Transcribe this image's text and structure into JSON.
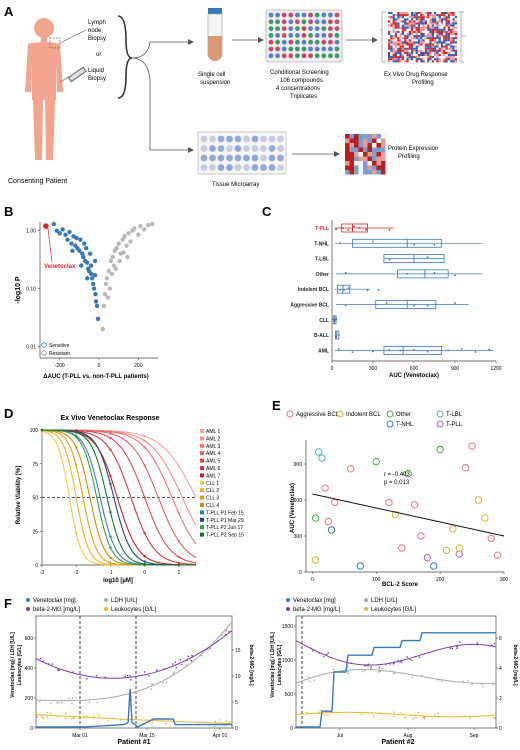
{
  "panels": {
    "a": "A",
    "b": "B",
    "c": "C",
    "d": "D",
    "e": "E",
    "f": "F"
  },
  "panelA": {
    "lymph": [
      "Lymph",
      "node",
      "Biopsy"
    ],
    "or": "or",
    "liquid": [
      "Liquid",
      "Biopsy"
    ],
    "patient": "Consenting Patient",
    "single": [
      "Single cell",
      "suspension"
    ],
    "screen": [
      "Conditional Screening",
      "106 compounds",
      "4 concentrations",
      "Triplicates"
    ],
    "exvivo": [
      "Ex Vivo Drug Response",
      "Profiling"
    ],
    "tma": "Tissue Microarray",
    "protein": [
      "Protein Expression",
      "Profiling"
    ]
  },
  "panelB": {
    "ylabel": "-log10 P",
    "xlabel": "ΔAUC (T-PLL vs. non-T-PLL patients)",
    "venetoclax": "Venetoclax",
    "legend": [
      "Sensitive",
      "Resistant"
    ],
    "yticks": [
      "1.00",
      "0.10",
      "0.01"
    ],
    "xticks": [
      "-200",
      "0",
      "200"
    ],
    "colors": {
      "sensitive": "#3a78b5",
      "resistant": "#b8b8b8",
      "venetoclax": "#d42828"
    },
    "chart_data": {
      "type": "scatter",
      "venetoclax": {
        "x": -270,
        "y": 1.2
      },
      "sensitive": [
        [
          -230,
          1.3
        ],
        [
          -215,
          1.0
        ],
        [
          -200,
          0.9
        ],
        [
          -185,
          1.05
        ],
        [
          -170,
          0.85
        ],
        [
          -160,
          0.7
        ],
        [
          -150,
          0.95
        ],
        [
          -140,
          0.6
        ],
        [
          -130,
          0.8
        ],
        [
          -120,
          0.55
        ],
        [
          -110,
          0.5
        ],
        [
          -100,
          0.45
        ],
        [
          -95,
          0.7
        ],
        [
          -85,
          0.4
        ],
        [
          -80,
          0.35
        ],
        [
          -70,
          0.3
        ],
        [
          -65,
          0.5
        ],
        [
          -60,
          0.28
        ],
        [
          -55,
          0.22
        ],
        [
          -50,
          0.2
        ],
        [
          -45,
          0.4
        ],
        [
          -40,
          0.18
        ],
        [
          -35,
          0.15
        ],
        [
          -30,
          0.12
        ],
        [
          -25,
          0.1
        ],
        [
          -20,
          0.3
        ],
        [
          -18,
          0.08
        ],
        [
          -15,
          0.06
        ],
        [
          -10,
          0.05
        ],
        [
          -5,
          0.03
        ],
        [
          -40,
          0.25
        ],
        [
          -75,
          0.6
        ],
        [
          -115,
          0.75
        ],
        [
          -135,
          0.45
        ],
        [
          -90,
          0.25
        ],
        [
          -60,
          0.15
        ],
        [
          -20,
          0.17
        ]
      ],
      "resistant": [
        [
          20,
          0.02
        ],
        [
          25,
          0.05
        ],
        [
          30,
          0.08
        ],
        [
          35,
          0.12
        ],
        [
          40,
          0.15
        ],
        [
          50,
          0.2
        ],
        [
          55,
          0.1
        ],
        [
          60,
          0.3
        ],
        [
          70,
          0.35
        ],
        [
          75,
          0.25
        ],
        [
          80,
          0.45
        ],
        [
          90,
          0.5
        ],
        [
          100,
          0.6
        ],
        [
          110,
          0.4
        ],
        [
          120,
          0.7
        ],
        [
          130,
          0.8
        ],
        [
          140,
          0.55
        ],
        [
          150,
          0.9
        ],
        [
          160,
          0.65
        ],
        [
          170,
          1.0
        ],
        [
          180,
          1.1
        ],
        [
          200,
          0.85
        ],
        [
          210,
          1.2
        ],
        [
          230,
          1.05
        ],
        [
          250,
          1.25
        ],
        [
          270,
          1.3
        ],
        [
          45,
          0.07
        ],
        [
          65,
          0.18
        ],
        [
          85,
          0.22
        ],
        [
          105,
          0.3
        ],
        [
          125,
          0.42
        ],
        [
          145,
          0.35
        ]
      ]
    }
  },
  "panelC": {
    "xlabel": "AUC (Venetoclax)",
    "xticks": [
      "0",
      "300",
      "600",
      "900",
      "1200"
    ],
    "chart_data": {
      "type": "boxplot",
      "xlim": [
        0,
        1200
      ],
      "groups": [
        {
          "name": "T-PLL",
          "q1": 70,
          "med": 150,
          "q3": 260,
          "lo": 20,
          "hi": 450,
          "color": "#d42828",
          "pts": [
            30,
            80,
            120,
            160,
            200,
            250,
            420
          ]
        },
        {
          "name": "T-NHL",
          "q1": 150,
          "med": 550,
          "q3": 800,
          "lo": 20,
          "hi": 1100,
          "color": "#3a78b5",
          "pts": [
            60,
            300,
            600,
            750
          ]
        },
        {
          "name": "T-LBL",
          "q1": 380,
          "med": 600,
          "q3": 820,
          "lo": 380,
          "hi": 820,
          "color": "#3a78b5",
          "pts": [
            420,
            700
          ]
        },
        {
          "name": "Other",
          "q1": 480,
          "med": 680,
          "q3": 850,
          "lo": 30,
          "hi": 1100,
          "color": "#3a78b5",
          "pts": [
            100,
            550,
            750,
            900
          ]
        },
        {
          "name": "Indolent BCL",
          "q1": 40,
          "med": 80,
          "q3": 130,
          "lo": 20,
          "hi": 280,
          "color": "#3a78b5",
          "pts": [
            60,
            90,
            120,
            260,
            340
          ]
        },
        {
          "name": "Aggressive BCL",
          "q1": 320,
          "med": 550,
          "q3": 760,
          "lo": 30,
          "hi": 1000,
          "color": "#3a78b5",
          "pts": [
            100,
            400,
            600,
            700,
            900
          ]
        },
        {
          "name": "CLL",
          "q1": 10,
          "med": 20,
          "q3": 30,
          "lo": 5,
          "hi": 40,
          "color": "#3a78b5",
          "pts": [
            10,
            20,
            30
          ]
        },
        {
          "name": "B-ALL",
          "q1": 25,
          "med": 35,
          "q3": 50,
          "lo": 20,
          "hi": 60,
          "color": "#3a78b5",
          "pts": [
            30
          ]
        },
        {
          "name": "AML",
          "q1": 380,
          "med": 520,
          "q3": 800,
          "lo": 20,
          "hi": 1180,
          "color": "#3a78b5",
          "pts": [
            50,
            150,
            300,
            420,
            500,
            600,
            700,
            850,
            950,
            1050,
            1150
          ]
        }
      ]
    }
  },
  "panelD": {
    "title": "Ex Vivo Venetoclax Response",
    "ylabel": "Relative Viability [%]",
    "xlabel": "log10 [µM]",
    "yticks": [
      "0",
      "25",
      "50",
      "75",
      "100"
    ],
    "xticks": [
      "-3",
      "-2",
      "-1",
      "0",
      "1"
    ],
    "chart_data": {
      "type": "line",
      "xlim": [
        -3,
        1.5
      ],
      "ylim": [
        0,
        100
      ],
      "series": [
        {
          "name": "AML 1",
          "color": "#f4a3a3",
          "ic50": 1.5,
          "h": 0.55
        },
        {
          "name": "AML 2",
          "color": "#ef8f8f",
          "ic50": 1.1,
          "h": 0.6
        },
        {
          "name": "AML 3",
          "color": "#e87777",
          "ic50": 0.8,
          "h": 0.65
        },
        {
          "name": "AML 4",
          "color": "#e06363",
          "ic50": 0.4,
          "h": 0.7
        },
        {
          "name": "AML 5",
          "color": "#d44e4e",
          "ic50": 0.0,
          "h": 0.75
        },
        {
          "name": "AML 6",
          "color": "#c73c3c",
          "ic50": -0.4,
          "h": 0.8
        },
        {
          "name": "AML 7",
          "color": "#b32a2a",
          "ic50": -0.8,
          "h": 0.9
        },
        {
          "name": "CLL 1",
          "color": "#f0c850",
          "ic50": -2.2,
          "h": 1.6
        },
        {
          "name": "CLL 2",
          "color": "#e7b530",
          "ic50": -2.0,
          "h": 1.5
        },
        {
          "name": "CLL 3",
          "color": "#d9a21c",
          "ic50": -1.8,
          "h": 1.4
        },
        {
          "name": "CLL 4",
          "color": "#c49012",
          "ic50": -1.6,
          "h": 1.3
        },
        {
          "name": "T-PLL P1 Feb 15",
          "color": "#3a78b5",
          "ic50": -1.3,
          "h": 1.2
        },
        {
          "name": "T-PLL P1 Mar 29",
          "color": "#22457a",
          "ic50": -0.9,
          "h": 1.1
        },
        {
          "name": "T-PLL P2 Jun 17",
          "color": "#3c9d4c",
          "ic50": -1.4,
          "h": 1.3
        },
        {
          "name": "T-PLL P2 Sep 15",
          "color": "#1e6e2e",
          "ic50": -1.1,
          "h": 1.2
        }
      ]
    }
  },
  "panelE": {
    "legend": [
      {
        "name": "Aggressive BCL",
        "color": "#e77b7b"
      },
      {
        "name": "Indolent BCL",
        "color": "#d4b43c"
      },
      {
        "name": "Other",
        "color": "#4cb04c"
      },
      {
        "name": "T-NHL",
        "color": "#3a78b5"
      },
      {
        "name": "T-LBL",
        "color": "#54b5b0"
      },
      {
        "name": "T-PLL",
        "color": "#a064c4"
      }
    ],
    "r": "r = -0.403",
    "p": "p = 0.013",
    "ylabel": "AUC (Venetoclax)",
    "xlabel": "BCL-2 Score",
    "yticks": [
      "0",
      "300",
      "600",
      "900"
    ],
    "xticks": [
      "0",
      "100",
      "200",
      "300"
    ],
    "chart_data": {
      "type": "scatter",
      "xlim": [
        -10,
        300
      ],
      "ylim": [
        0,
        1100
      ],
      "line": [
        [
          0,
          650
        ],
        [
          300,
          300
        ]
      ],
      "points": [
        {
          "x": 10,
          "y": 1000,
          "g": 4
        },
        {
          "x": 15,
          "y": 950,
          "g": 4
        },
        {
          "x": 20,
          "y": 700,
          "g": 0
        },
        {
          "x": 25,
          "y": 420,
          "g": 0
        },
        {
          "x": 35,
          "y": 580,
          "g": 0
        },
        {
          "x": 60,
          "y": 860,
          "g": 0
        },
        {
          "x": 100,
          "y": 920,
          "g": 2
        },
        {
          "x": 120,
          "y": 580,
          "g": 0
        },
        {
          "x": 130,
          "y": 480,
          "g": 1
        },
        {
          "x": 140,
          "y": 200,
          "g": 0
        },
        {
          "x": 150,
          "y": 820,
          "g": 2
        },
        {
          "x": 160,
          "y": 560,
          "g": 0
        },
        {
          "x": 170,
          "y": 300,
          "g": 0
        },
        {
          "x": 190,
          "y": 50,
          "g": 3
        },
        {
          "x": 200,
          "y": 1020,
          "g": 2
        },
        {
          "x": 210,
          "y": 180,
          "g": 1
        },
        {
          "x": 220,
          "y": 360,
          "g": 1
        },
        {
          "x": 230,
          "y": 150,
          "g": 5
        },
        {
          "x": 240,
          "y": 870,
          "g": 0
        },
        {
          "x": 250,
          "y": 1050,
          "g": 0
        },
        {
          "x": 260,
          "y": 600,
          "g": 1
        },
        {
          "x": 270,
          "y": 450,
          "g": 1
        },
        {
          "x": 280,
          "y": 280,
          "g": 0
        },
        {
          "x": 290,
          "y": 140,
          "g": 0
        },
        {
          "x": 5,
          "y": 100,
          "g": 1
        },
        {
          "x": 30,
          "y": 350,
          "g": 3
        },
        {
          "x": 75,
          "y": 50,
          "g": 3
        },
        {
          "x": 180,
          "y": 120,
          "g": 5
        },
        {
          "x": 5,
          "y": 450,
          "g": 2
        },
        {
          "x": 230,
          "y": 200,
          "g": 1
        }
      ]
    }
  },
  "panelF1": {
    "legend": [
      "Venetoclax [mg]",
      "LDH [U/L]",
      "beta-2-MG [mg/L]",
      "Leukocytes [G/L]"
    ],
    "colors": [
      "#3a78b5",
      "#a8a8a8",
      "#7b3fa0",
      "#e7b530"
    ],
    "ylabel": [
      "Venetoclax [mg] / LDH [U/L]",
      "Leukocytes [G/L]"
    ],
    "y2label": "beta-2-MG [mg/L]",
    "yticks": [
      "0",
      "200",
      "400",
      "600"
    ],
    "y2ticks": [
      "0",
      "5",
      "10",
      "15"
    ],
    "xticks": [
      "Mar 01",
      "Mar 15",
      "Apr 01"
    ],
    "title": "Patient #1"
  },
  "panelF2": {
    "legend": [
      "Venetoclax [mg]",
      "LDH [U/L]",
      "beta-2-MG [mg/L]",
      "Leukocytes [G/L]"
    ],
    "ylabel": [
      "Venetoclax [mg] / LDH [U/L]",
      "Leukocytes [G/L]"
    ],
    "y2label": "beta-2-MG [mg/L]",
    "yticks": [
      "0",
      "500",
      "1000",
      "1500"
    ],
    "y2ticks": [
      "0",
      "2",
      "4",
      "6"
    ],
    "xticks": [
      "Jul",
      "Aug",
      "Sep"
    ],
    "title": "Patient #2"
  }
}
